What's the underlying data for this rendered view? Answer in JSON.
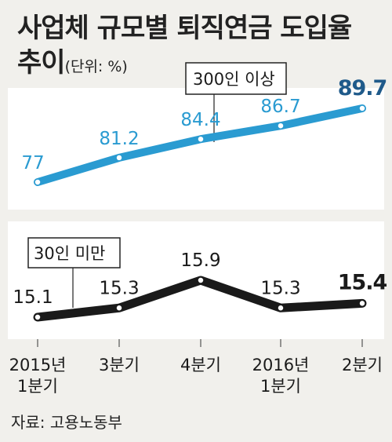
{
  "title_line1": "사업체 규모별 퇴직연금 도입율",
  "title_line2": "추이",
  "unit": "(단위: %)",
  "source": "자료: 고용노동부",
  "colors": {
    "large": "#2a9bd1",
    "small": "#1a1a1a",
    "panel": "#ffffff",
    "background": "#f1f0ec",
    "last_value_large": "#1f5a8a"
  },
  "chart_data": [
    {
      "type": "line",
      "categories": [
        "2015년 1분기",
        "3분기",
        "4분기",
        "2016년 1분기",
        "2분기"
      ],
      "series": [
        {
          "name": "300인 이상",
          "values": [
            77,
            81.2,
            84.4,
            86.7,
            89.7
          ]
        }
      ],
      "value_labels": [
        "77",
        "81.2",
        "84.4",
        "86.7",
        "89.7"
      ]
    },
    {
      "type": "line",
      "categories": [
        "2015년 1분기",
        "3분기",
        "4분기",
        "2016년 1분기",
        "2분기"
      ],
      "series": [
        {
          "name": "30인 미만",
          "values": [
            15.1,
            15.3,
            15.9,
            15.3,
            15.4
          ]
        }
      ],
      "value_labels": [
        "15.1",
        "15.3",
        "15.9",
        "15.3",
        "15.4"
      ]
    }
  ],
  "x_labels": [
    {
      "line1": "2015년",
      "line2": "1분기"
    },
    {
      "line1": "3분기",
      "line2": ""
    },
    {
      "line1": "4분기",
      "line2": ""
    },
    {
      "line1": "2016년",
      "line2": "1분기"
    },
    {
      "line1": "2분기",
      "line2": ""
    }
  ]
}
